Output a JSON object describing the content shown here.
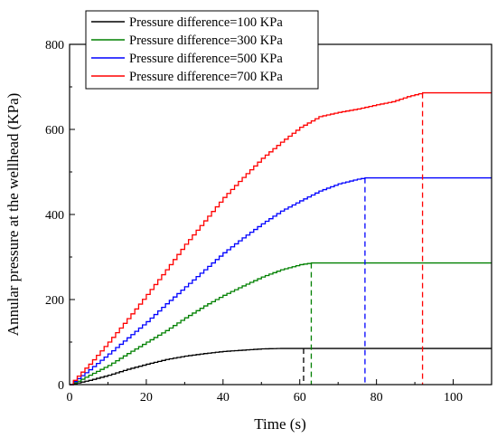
{
  "chart_data": {
    "type": "line",
    "title": "",
    "xlabel": "Time (s)",
    "ylabel": "Annular pressure at the wellhead (KPa)",
    "xlim": [
      0,
      110
    ],
    "ylim": [
      0,
      800
    ],
    "xticks": [
      0,
      20,
      40,
      60,
      80,
      100
    ],
    "yticks": [
      0,
      200,
      400,
      600,
      800
    ],
    "x_tick_labels": [
      "0",
      "20",
      "40",
      "60",
      "80",
      "100"
    ],
    "y_tick_labels": [
      "0",
      "200",
      "400",
      "600",
      "800"
    ],
    "grid": false,
    "legend_position": "top-left",
    "series": [
      {
        "name": "Pressure difference=100 KPa",
        "color": "#000000",
        "x": [
          0,
          2,
          5,
          10,
          15,
          20,
          25,
          30,
          35,
          40,
          45,
          50,
          55,
          60,
          61,
          70,
          80,
          90,
          100,
          110
        ],
        "y": [
          0,
          4,
          10,
          22,
          36,
          48,
          59,
          67,
          73,
          78,
          81,
          84,
          85,
          85,
          85,
          85,
          85,
          85,
          85,
          85
        ],
        "dashed_marker_x": 61
      },
      {
        "name": "Pressure difference=300 KPa",
        "color": "#008000",
        "x": [
          0,
          2,
          5,
          10,
          15,
          20,
          25,
          30,
          35,
          40,
          45,
          50,
          55,
          60,
          63,
          70,
          80,
          90,
          100,
          110
        ],
        "y": [
          0,
          8,
          22,
          45,
          73,
          100,
          127,
          157,
          185,
          210,
          232,
          253,
          270,
          282,
          286,
          286,
          286,
          286,
          286,
          286
        ],
        "dashed_marker_x": 63
      },
      {
        "name": "Pressure difference=500 KPa",
        "color": "#0000ff",
        "x": [
          0,
          2,
          5,
          10,
          15,
          20,
          25,
          30,
          35,
          40,
          45,
          50,
          55,
          60,
          65,
          70,
          75,
          77,
          80,
          90,
          100,
          110
        ],
        "y": [
          0,
          14,
          35,
          72,
          110,
          148,
          190,
          230,
          270,
          310,
          345,
          378,
          408,
          432,
          455,
          472,
          483,
          486,
          486,
          486,
          486,
          486
        ],
        "dashed_marker_x": 77
      },
      {
        "name": "Pressure difference=700 KPa",
        "color": "#ff0000",
        "x": [
          0,
          2,
          5,
          10,
          15,
          20,
          25,
          30,
          35,
          40,
          45,
          50,
          55,
          60,
          65,
          70,
          75,
          80,
          84,
          88,
          92,
          100,
          110
        ],
        "y": [
          0,
          20,
          48,
          100,
          155,
          212,
          270,
          330,
          385,
          440,
          487,
          532,
          570,
          605,
          630,
          640,
          648,
          658,
          665,
          677,
          686,
          686,
          686
        ],
        "dashed_marker_x": 92
      }
    ]
  }
}
